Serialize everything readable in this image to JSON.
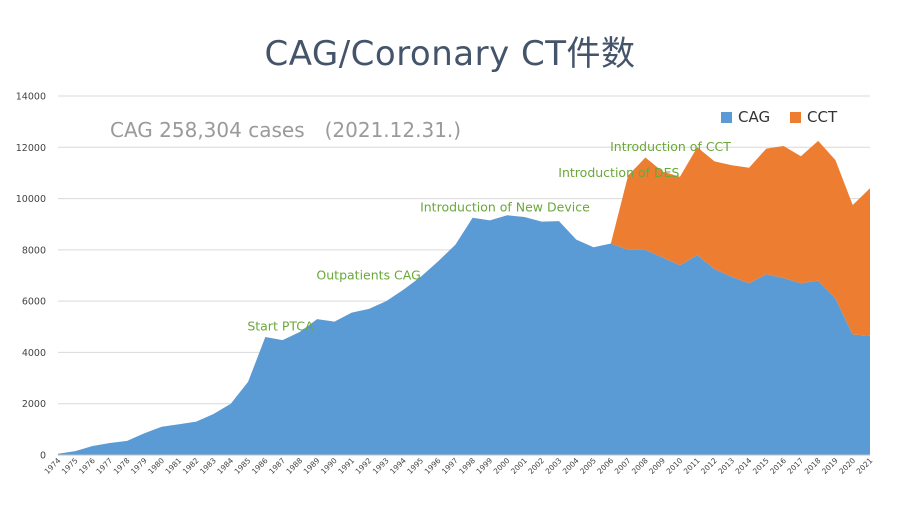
{
  "title": "CAG/Coronary CT件数",
  "chart_data": {
    "type": "area",
    "stacked": true,
    "title": "CAG/Coronary CT件数",
    "xlabel": "",
    "ylabel": "",
    "ylim": [
      0,
      14000
    ],
    "yticks": [
      0,
      2000,
      4000,
      6000,
      8000,
      10000,
      12000,
      14000
    ],
    "grid": true,
    "legend_position": "top-right",
    "categories": [
      "1974",
      "1975",
      "1976",
      "1977",
      "1978",
      "1979",
      "1980",
      "1981",
      "1982",
      "1983",
      "1984",
      "1985",
      "1986",
      "1987",
      "1988",
      "1989",
      "1990",
      "1991",
      "1992",
      "1993",
      "1994",
      "1995",
      "1996",
      "1997",
      "1998",
      "1999",
      "2000",
      "2001",
      "2002",
      "2003",
      "2004",
      "2005",
      "2006",
      "2007",
      "2008",
      "2009",
      "2010",
      "2011",
      "2012",
      "2013",
      "2014",
      "2015",
      "2016",
      "2017",
      "2018",
      "2019",
      "2020",
      "2021"
    ],
    "series": [
      {
        "name": "CAG",
        "color": "#5b9bd5",
        "values": [
          50,
          150,
          350,
          470,
          550,
          850,
          1100,
          1200,
          1300,
          1600,
          2000,
          2850,
          4600,
          4480,
          4800,
          5300,
          5200,
          5550,
          5700,
          6000,
          6450,
          6950,
          7550,
          8200,
          9250,
          9150,
          9350,
          9280,
          9100,
          9120,
          8400,
          8100,
          8250,
          8000,
          8000,
          7700,
          7400,
          7800,
          7250,
          6950,
          6700,
          7050,
          6900,
          6700,
          6800,
          6100,
          4700,
          4650
        ]
      },
      {
        "name": "CCT",
        "color": "#ed7d31",
        "values": [
          0,
          0,
          0,
          0,
          0,
          0,
          0,
          0,
          0,
          0,
          0,
          0,
          0,
          0,
          0,
          0,
          0,
          0,
          0,
          0,
          0,
          0,
          0,
          0,
          0,
          0,
          0,
          0,
          0,
          0,
          0,
          0,
          0,
          2900,
          3600,
          3350,
          3450,
          4200,
          4200,
          4350,
          4500,
          4900,
          5150,
          4950,
          5450,
          5400,
          5050,
          5750
        ]
      }
    ],
    "annotations": [
      {
        "text": "Start PTCA",
        "x": "1986",
        "y": 4850
      },
      {
        "text": "Outpatients CAG",
        "x": "1990",
        "y": 6850
      },
      {
        "text": "Introduction of New Device",
        "x": "1996",
        "y": 9500
      },
      {
        "text": "Introduction of DES",
        "x": "2004",
        "y": 10850
      },
      {
        "text": "Introduction of CCT",
        "x": "2007",
        "y": 11850
      }
    ],
    "note": "CAG 258,304 cases　(2021.12.31.)"
  }
}
